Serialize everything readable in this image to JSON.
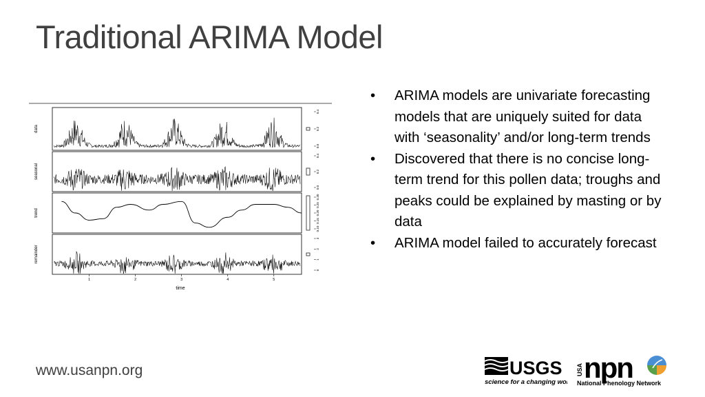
{
  "slide": {
    "title": "Traditional ARIMA Model",
    "footer_url": "www.usanpn.org"
  },
  "bullets": [
    "ARIMA models are univariate forecasting models that are uniquely suited for data with ‘seasonality’ and/or long-term trends",
    "Discovered that there is no concise long-term trend for this pollen data; troughs and peaks could be explained by masting or by data",
    "ARIMA model failed to accurately forecast"
  ],
  "chart_data": {
    "type": "line",
    "xlabel": "time",
    "x_ticks": [
      "1",
      "2",
      "3",
      "4",
      "5"
    ],
    "panels": [
      {
        "name": "data",
        "y_ticks": [
          "0.0",
          "0.2",
          "0.4"
        ]
      },
      {
        "name": "seasonal",
        "y_ticks": [
          "0.0",
          "0.2",
          "0.4"
        ]
      },
      {
        "name": "trend",
        "y_ticks": [
          "0.10",
          "0.15",
          "0.20",
          "0.25",
          "0.30"
        ],
        "series": {
          "x": [
            0.4,
            0.7,
            1.0,
            1.3,
            1.6,
            1.9,
            2.3,
            2.6,
            3.0,
            3.3,
            3.6,
            4.0,
            4.3,
            4.6,
            5.0,
            5.3,
            5.6
          ],
          "y": [
            0.28,
            0.2,
            0.15,
            0.16,
            0.24,
            0.26,
            0.22,
            0.26,
            0.28,
            0.13,
            0.1,
            0.17,
            0.22,
            0.26,
            0.26,
            0.24,
            0.2
          ]
        }
      },
      {
        "name": "remainder",
        "y_ticks": [
          "0",
          "1",
          "2",
          "3"
        ]
      }
    ]
  },
  "logos": {
    "usgs_word": "USGS",
    "usgs_tagline": "science for a changing world",
    "npn_prefix": "USA",
    "npn_word": "npn",
    "npn_name": "National Phenology Network",
    "npn_colors": [
      "#4a8fd4",
      "#f0a030",
      "#5aa04a"
    ]
  }
}
